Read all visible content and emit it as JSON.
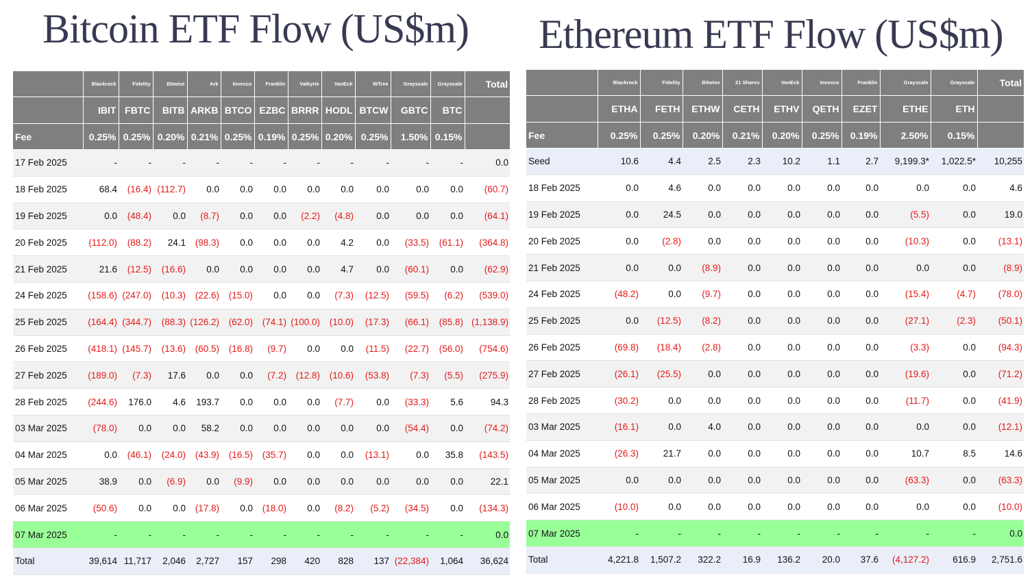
{
  "btc": {
    "title": "Bitcoin ETF Flow (US$m)",
    "issuers": [
      "Blackrock",
      "Fidelity",
      "Bitwise",
      "Ark",
      "Invesco",
      "Franklin",
      "Valkyrie",
      "VanEck",
      "WTree",
      "Grayscale",
      "Grayscale"
    ],
    "total_header": "Total",
    "tickers": [
      "IBIT",
      "FBTC",
      "BITB",
      "ARKB",
      "BTCO",
      "EZBC",
      "BRRR",
      "HODL",
      "BTCW",
      "GBTC",
      "BTC"
    ],
    "fee_label": "Fee",
    "fees": [
      "0.25%",
      "0.25%",
      "0.20%",
      "0.21%",
      "0.25%",
      "0.19%",
      "0.25%",
      "0.20%",
      "0.25%",
      "1.50%",
      "0.15%"
    ],
    "rows": [
      {
        "date": "17 Feb 2025",
        "values": [
          "-",
          "-",
          "-",
          "-",
          "-",
          "-",
          "-",
          "-",
          "-",
          "-",
          "-",
          "0.0"
        ]
      },
      {
        "date": "18 Feb 2025",
        "values": [
          "68.4",
          "(16.4)",
          "(112.7)",
          "0.0",
          "0.0",
          "0.0",
          "0.0",
          "0.0",
          "0.0",
          "0.0",
          "0.0",
          "(60.7)"
        ]
      },
      {
        "date": "19 Feb 2025",
        "values": [
          "0.0",
          "(48.4)",
          "0.0",
          "(8.7)",
          "0.0",
          "0.0",
          "(2.2)",
          "(4.8)",
          "0.0",
          "0.0",
          "0.0",
          "(64.1)"
        ]
      },
      {
        "date": "20 Feb 2025",
        "values": [
          "(112.0)",
          "(88.2)",
          "24.1",
          "(98.3)",
          "0.0",
          "0.0",
          "0.0",
          "4.2",
          "0.0",
          "(33.5)",
          "(61.1)",
          "(364.8)"
        ]
      },
      {
        "date": "21 Feb 2025",
        "values": [
          "21.6",
          "(12.5)",
          "(16.6)",
          "0.0",
          "0.0",
          "0.0",
          "0.0",
          "4.7",
          "0.0",
          "(60.1)",
          "0.0",
          "(62.9)"
        ]
      },
      {
        "date": "24 Feb 2025",
        "values": [
          "(158.6)",
          "(247.0)",
          "(10.3)",
          "(22.6)",
          "(15.0)",
          "0.0",
          "0.0",
          "(7.3)",
          "(12.5)",
          "(59.5)",
          "(6.2)",
          "(539.0)"
        ]
      },
      {
        "date": "25 Feb 2025",
        "values": [
          "(164.4)",
          "(344.7)",
          "(88.3)",
          "(126.2)",
          "(62.0)",
          "(74.1)",
          "(100.0)",
          "(10.0)",
          "(17.3)",
          "(66.1)",
          "(85.8)",
          "(1,138.9)"
        ]
      },
      {
        "date": "26 Feb 2025",
        "values": [
          "(418.1)",
          "(145.7)",
          "(13.6)",
          "(60.5)",
          "(16.8)",
          "(9.7)",
          "0.0",
          "0.0",
          "(11.5)",
          "(22.7)",
          "(56.0)",
          "(754.6)"
        ]
      },
      {
        "date": "27 Feb 2025",
        "values": [
          "(189.0)",
          "(7.3)",
          "17.6",
          "0.0",
          "0.0",
          "(7.2)",
          "(12.8)",
          "(10.6)",
          "(53.8)",
          "(7.3)",
          "(5.5)",
          "(275.9)"
        ]
      },
      {
        "date": "28 Feb 2025",
        "values": [
          "(244.6)",
          "176.0",
          "4.6",
          "193.7",
          "0.0",
          "0.0",
          "0.0",
          "(7.7)",
          "0.0",
          "(33.3)",
          "5.6",
          "94.3"
        ]
      },
      {
        "date": "03 Mar 2025",
        "values": [
          "(78.0)",
          "0.0",
          "0.0",
          "58.2",
          "0.0",
          "0.0",
          "0.0",
          "0.0",
          "0.0",
          "(54.4)",
          "0.0",
          "(74.2)"
        ]
      },
      {
        "date": "04 Mar 2025",
        "values": [
          "0.0",
          "(46.1)",
          "(24.0)",
          "(43.9)",
          "(16.5)",
          "(35.7)",
          "0.0",
          "0.0",
          "(13.1)",
          "0.0",
          "35.8",
          "(143.5)"
        ]
      },
      {
        "date": "05 Mar 2025",
        "values": [
          "38.9",
          "0.0",
          "(6.9)",
          "0.0",
          "(9.9)",
          "0.0",
          "0.0",
          "0.0",
          "0.0",
          "0.0",
          "0.0",
          "22.1"
        ]
      },
      {
        "date": "06 Mar 2025",
        "values": [
          "(50.6)",
          "0.0",
          "0.0",
          "(17.8)",
          "0.0",
          "(18.0)",
          "0.0",
          "(8.2)",
          "(5.2)",
          "(34.5)",
          "0.0",
          "(134.3)"
        ]
      },
      {
        "date": "07 Mar 2025",
        "highlight": true,
        "values": [
          "-",
          "-",
          "-",
          "-",
          "-",
          "-",
          "-",
          "-",
          "-",
          "-",
          "-",
          "0.0"
        ]
      },
      {
        "date": "Total",
        "total": true,
        "values": [
          "39,614",
          "11,717",
          "2,046",
          "2,727",
          "157",
          "298",
          "420",
          "828",
          "137",
          "(22,384)",
          "1,064",
          "36,624"
        ]
      }
    ]
  },
  "eth": {
    "title": "Ethereum ETF Flow (US$m)",
    "issuers": [
      "Blackrock",
      "Fidelity",
      "Bitwise",
      "21 Shares",
      "VanEck",
      "Invesco",
      "Franklin",
      "Grayscale",
      "Grayscale"
    ],
    "total_header": "Total",
    "tickers": [
      "ETHA",
      "FETH",
      "ETHW",
      "CETH",
      "ETHV",
      "QETH",
      "EZET",
      "ETHE",
      "ETH"
    ],
    "fee_label": "Fee",
    "fees": [
      "0.25%",
      "0.25%",
      "0.20%",
      "0.21%",
      "0.20%",
      "0.25%",
      "0.19%",
      "2.50%",
      "0.15%"
    ],
    "rows": [
      {
        "date": "Seed",
        "seed": true,
        "values": [
          "10.6",
          "4.4",
          "2.5",
          "2.3",
          "10.2",
          "1.1",
          "2.7",
          "9,199.3*",
          "1,022.5*",
          "10,255"
        ]
      },
      {
        "date": "18 Feb 2025",
        "values": [
          "0.0",
          "4.6",
          "0.0",
          "0.0",
          "0.0",
          "0.0",
          "0.0",
          "0.0",
          "0.0",
          "4.6"
        ]
      },
      {
        "date": "19 Feb 2025",
        "values": [
          "0.0",
          "24.5",
          "0.0",
          "0.0",
          "0.0",
          "0.0",
          "0.0",
          "(5.5)",
          "0.0",
          "19.0"
        ]
      },
      {
        "date": "20 Feb 2025",
        "values": [
          "0.0",
          "(2.8)",
          "0.0",
          "0.0",
          "0.0",
          "0.0",
          "0.0",
          "(10.3)",
          "0.0",
          "(13.1)"
        ]
      },
      {
        "date": "21 Feb 2025",
        "values": [
          "0.0",
          "0.0",
          "(8.9)",
          "0.0",
          "0.0",
          "0.0",
          "0.0",
          "0.0",
          "0.0",
          "(8.9)"
        ]
      },
      {
        "date": "24 Feb 2025",
        "values": [
          "(48.2)",
          "0.0",
          "(9.7)",
          "0.0",
          "0.0",
          "0.0",
          "0.0",
          "(15.4)",
          "(4.7)",
          "(78.0)"
        ]
      },
      {
        "date": "25 Feb 2025",
        "values": [
          "0.0",
          "(12.5)",
          "(8.2)",
          "0.0",
          "0.0",
          "0.0",
          "0.0",
          "(27.1)",
          "(2.3)",
          "(50.1)"
        ]
      },
      {
        "date": "26 Feb 2025",
        "values": [
          "(69.8)",
          "(18.4)",
          "(2.8)",
          "0.0",
          "0.0",
          "0.0",
          "0.0",
          "(3.3)",
          "0.0",
          "(94.3)"
        ]
      },
      {
        "date": "27 Feb 2025",
        "values": [
          "(26.1)",
          "(25.5)",
          "0.0",
          "0.0",
          "0.0",
          "0.0",
          "0.0",
          "(19.6)",
          "0.0",
          "(71.2)"
        ]
      },
      {
        "date": "28 Feb 2025",
        "values": [
          "(30.2)",
          "0.0",
          "0.0",
          "0.0",
          "0.0",
          "0.0",
          "0.0",
          "(11.7)",
          "0.0",
          "(41.9)"
        ]
      },
      {
        "date": "03 Mar 2025",
        "values": [
          "(16.1)",
          "0.0",
          "4.0",
          "0.0",
          "0.0",
          "0.0",
          "0.0",
          "0.0",
          "0.0",
          "(12.1)"
        ]
      },
      {
        "date": "04 Mar 2025",
        "values": [
          "(26.3)",
          "21.7",
          "0.0",
          "0.0",
          "0.0",
          "0.0",
          "0.0",
          "10.7",
          "8.5",
          "14.6"
        ]
      },
      {
        "date": "05 Mar 2025",
        "values": [
          "0.0",
          "0.0",
          "0.0",
          "0.0",
          "0.0",
          "0.0",
          "0.0",
          "(63.3)",
          "0.0",
          "(63.3)"
        ]
      },
      {
        "date": "06 Mar 2025",
        "values": [
          "(10.0)",
          "0.0",
          "0.0",
          "0.0",
          "0.0",
          "0.0",
          "0.0",
          "0.0",
          "0.0",
          "(10.0)"
        ]
      },
      {
        "date": "07 Mar 2025",
        "highlight": true,
        "values": [
          "-",
          "-",
          "-",
          "-",
          "-",
          "-",
          "-",
          "-",
          "-",
          "0.0"
        ]
      },
      {
        "date": "Total",
        "total": true,
        "values": [
          "4,221.8",
          "1,507.2",
          "322.2",
          "16.9",
          "136.2",
          "20.0",
          "37.6",
          "(4,127.2)",
          "616.9",
          "2,751.6"
        ]
      }
    ]
  }
}
